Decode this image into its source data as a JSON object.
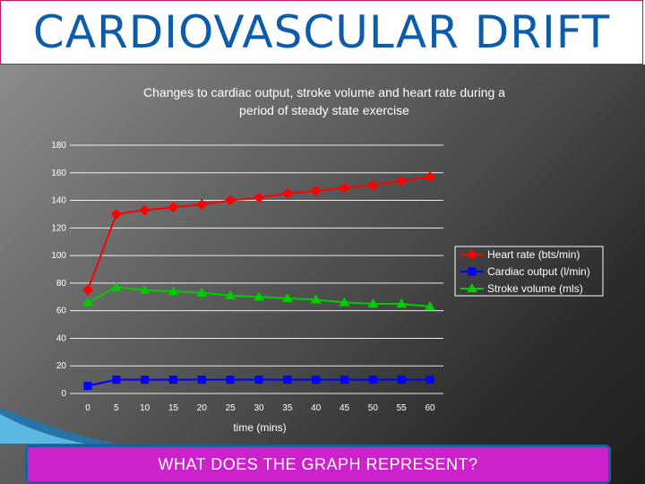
{
  "slide": {
    "title": "CARDIOVASCULAR DRIFT",
    "question": "WHAT DOES THE GRAPH REPRESENT?"
  },
  "colors": {
    "title": "#0b5cab",
    "title_border": "#c2185b",
    "question_bg": "#cc22cc",
    "question_border": "#1f5fa0"
  },
  "chart_data": {
    "type": "line",
    "title_lines": [
      "Changes to cardiac output, stroke volume and heart rate during a",
      "period of steady state exercise"
    ],
    "xlabel": "time (mins)",
    "ylabel": "",
    "x": [
      0,
      5,
      10,
      15,
      20,
      25,
      30,
      35,
      40,
      45,
      50,
      55,
      60
    ],
    "ylim": [
      0,
      180
    ],
    "yticks": [
      0,
      20,
      40,
      60,
      80,
      100,
      120,
      140,
      160,
      180
    ],
    "grid": "horizontal",
    "legend_position": "right",
    "series": [
      {
        "name": "Heart rate (bts/min)",
        "color": "#ff0000",
        "marker": "diamond",
        "values": [
          75,
          130,
          133,
          135,
          137,
          140,
          142,
          145,
          147,
          149,
          151,
          154,
          157
        ]
      },
      {
        "name": "Cardiac output (l/min)",
        "color": "#0000ff",
        "marker": "square",
        "values": [
          5.5,
          10,
          10,
          10,
          10,
          10,
          10,
          10,
          10,
          10,
          10,
          10,
          10
        ]
      },
      {
        "name": "Stroke volume (mls)",
        "color": "#00cc00",
        "marker": "triangle",
        "values": [
          66,
          77,
          75,
          74,
          73,
          71,
          70,
          69,
          68,
          66,
          65,
          65,
          63
        ]
      }
    ]
  }
}
